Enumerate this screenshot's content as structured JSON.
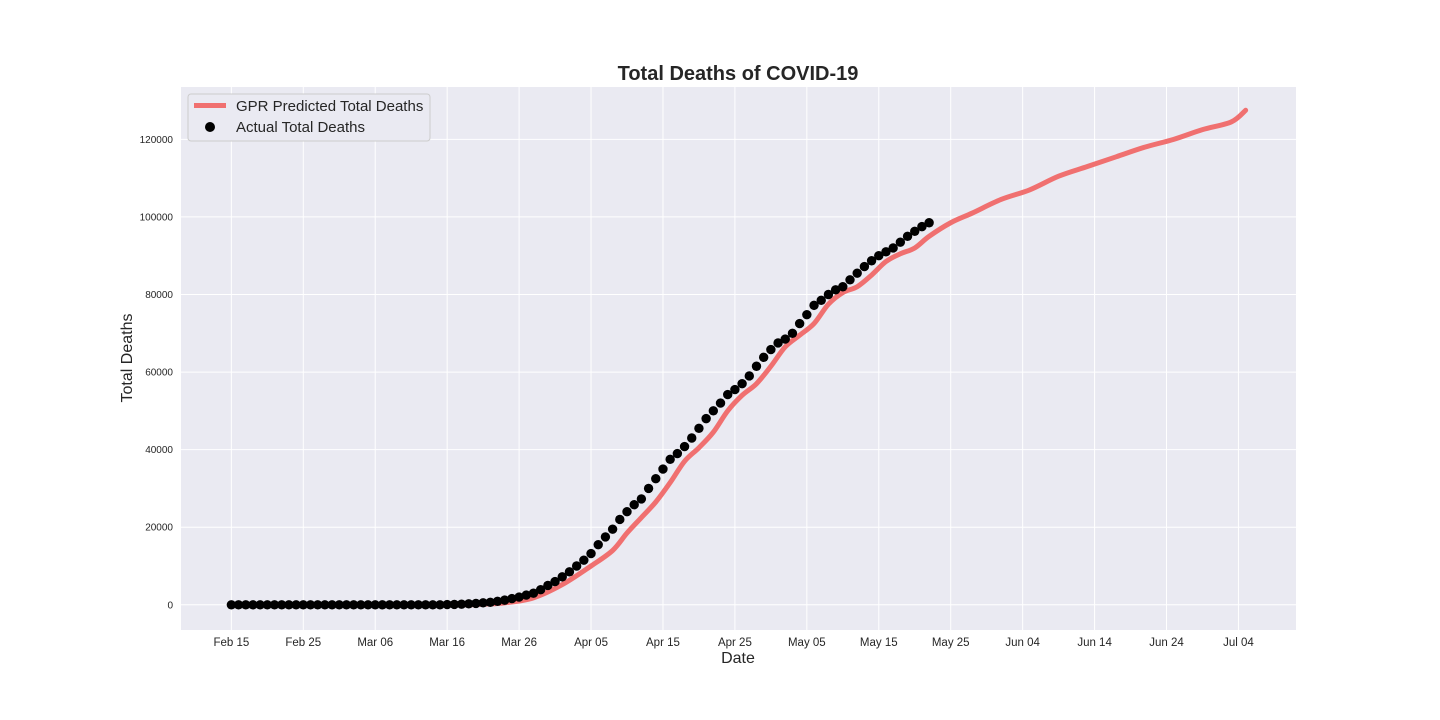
{
  "chart_data": {
    "type": "line",
    "title": "Total Deaths of COVID-19",
    "xlabel": "Date",
    "ylabel": "Total Deaths",
    "x_axis": "date",
    "x_ticks": [
      "Feb 15",
      "Feb 25",
      "Mar 06",
      "Mar 16",
      "Mar 26",
      "Apr 05",
      "Apr 15",
      "Apr 25",
      "May 05",
      "May 15",
      "May 25",
      "Jun 04",
      "Jun 14",
      "Jun 24",
      "Jul 04"
    ],
    "y_ticks": [
      "0",
      "20000",
      "40000",
      "60000",
      "80000",
      "100000",
      "120000"
    ],
    "ylim": [
      -6500,
      133500
    ],
    "xlim": [
      "2020-02-08",
      "2020-07-12"
    ],
    "grid": true,
    "legend_position": "top-left",
    "colors": {
      "predicted": "#f07070",
      "actual": "#000000",
      "plot_background": "#eaeaf2",
      "grid": "#ffffff"
    },
    "series": [
      {
        "name": "GPR Predicted Total Deaths",
        "kind": "line",
        "points": [
          [
            "2020-02-15",
            0
          ],
          [
            "2020-03-16",
            0
          ],
          [
            "2020-03-20",
            100
          ],
          [
            "2020-03-24",
            500
          ],
          [
            "2020-03-28",
            1800
          ],
          [
            "2020-04-01",
            5200
          ],
          [
            "2020-04-05",
            10000
          ],
          [
            "2020-04-08",
            14000
          ],
          [
            "2020-04-10",
            18500
          ],
          [
            "2020-04-12",
            22500
          ],
          [
            "2020-04-14",
            26500
          ],
          [
            "2020-04-16",
            31500
          ],
          [
            "2020-04-18",
            37000
          ],
          [
            "2020-04-20",
            40500
          ],
          [
            "2020-04-22",
            44500
          ],
          [
            "2020-04-24",
            50000
          ],
          [
            "2020-04-26",
            54000
          ],
          [
            "2020-04-28",
            57000
          ],
          [
            "2020-04-30",
            61500
          ],
          [
            "2020-05-02",
            66500
          ],
          [
            "2020-05-04",
            69500
          ],
          [
            "2020-05-06",
            72500
          ],
          [
            "2020-05-08",
            77500
          ],
          [
            "2020-05-10",
            80500
          ],
          [
            "2020-05-12",
            82000
          ],
          [
            "2020-05-14",
            85000
          ],
          [
            "2020-05-16",
            88500
          ],
          [
            "2020-05-18",
            90500
          ],
          [
            "2020-05-20",
            92000
          ],
          [
            "2020-05-22",
            95000
          ],
          [
            "2020-05-25",
            98500
          ],
          [
            "2020-05-28",
            101000
          ],
          [
            "2020-06-01",
            104500
          ],
          [
            "2020-06-05",
            107000
          ],
          [
            "2020-06-09",
            110500
          ],
          [
            "2020-06-13",
            113000
          ],
          [
            "2020-06-17",
            115500
          ],
          [
            "2020-06-21",
            118000
          ],
          [
            "2020-06-25",
            120000
          ],
          [
            "2020-06-29",
            122500
          ],
          [
            "2020-07-03",
            124500
          ],
          [
            "2020-07-05",
            127500
          ]
        ]
      },
      {
        "name": "Actual Total Deaths",
        "kind": "scatter",
        "start_date": "2020-02-15",
        "step_days": 1,
        "values": [
          0,
          0,
          0,
          0,
          0,
          0,
          0,
          0,
          0,
          0,
          0,
          0,
          0,
          0,
          0,
          0,
          0,
          0,
          0,
          0,
          0,
          0,
          0,
          0,
          0,
          0,
          0,
          0,
          0,
          0,
          50,
          100,
          150,
          250,
          350,
          500,
          650,
          900,
          1200,
          1600,
          2000,
          2500,
          3000,
          3900,
          5000,
          6000,
          7200,
          8500,
          10000,
          11500,
          13200,
          15500,
          17500,
          19500,
          22000,
          24000,
          25800,
          27300,
          30000,
          32500,
          35000,
          37500,
          39000,
          40800,
          43000,
          45500,
          48000,
          50000,
          52000,
          54200,
          55500,
          57000,
          59000,
          61500,
          63800,
          65800,
          67500,
          68500,
          70000,
          72500,
          74800,
          77200,
          78500,
          80000,
          81200,
          82000,
          83800,
          85500,
          87200,
          88700,
          90000,
          91000,
          92000,
          93500,
          95000,
          96300,
          97500,
          98500
        ]
      }
    ]
  }
}
